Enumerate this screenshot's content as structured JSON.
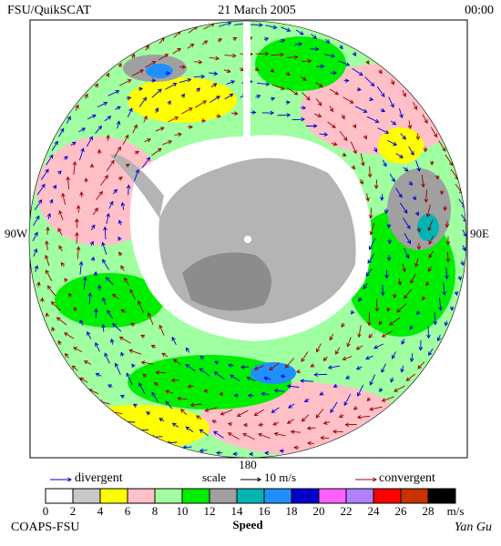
{
  "header": {
    "left": "FSU/QuikSCAT",
    "center": "21 March 2005",
    "right": "00:00"
  },
  "map": {
    "labels": {
      "west": "90W",
      "east": "90E",
      "bottom": "180"
    }
  },
  "legend": {
    "divergent": "divergent",
    "divergent_color": "#0000cc",
    "scale": "scale",
    "scale_value": "10 m/s",
    "convergent": "convergent",
    "convergent_color": "#990000"
  },
  "colorbar": {
    "colors": [
      "#ffffff",
      "#c8c8c8",
      "#ffff00",
      "#ffc0c8",
      "#a0ffa0",
      "#00ee00",
      "#a0a0a0",
      "#00b4b4",
      "#2090ff",
      "#0000c8",
      "#ff60ff",
      "#b080ff",
      "#ff0000",
      "#c83200",
      "#000000"
    ],
    "ticks": [
      0,
      2,
      4,
      6,
      8,
      10,
      12,
      14,
      16,
      18,
      20,
      22,
      24,
      26,
      28
    ],
    "unit": "m/s",
    "title": "Speed"
  },
  "footer": {
    "left": "COAPS-FSU",
    "right": "Yan Gu"
  }
}
